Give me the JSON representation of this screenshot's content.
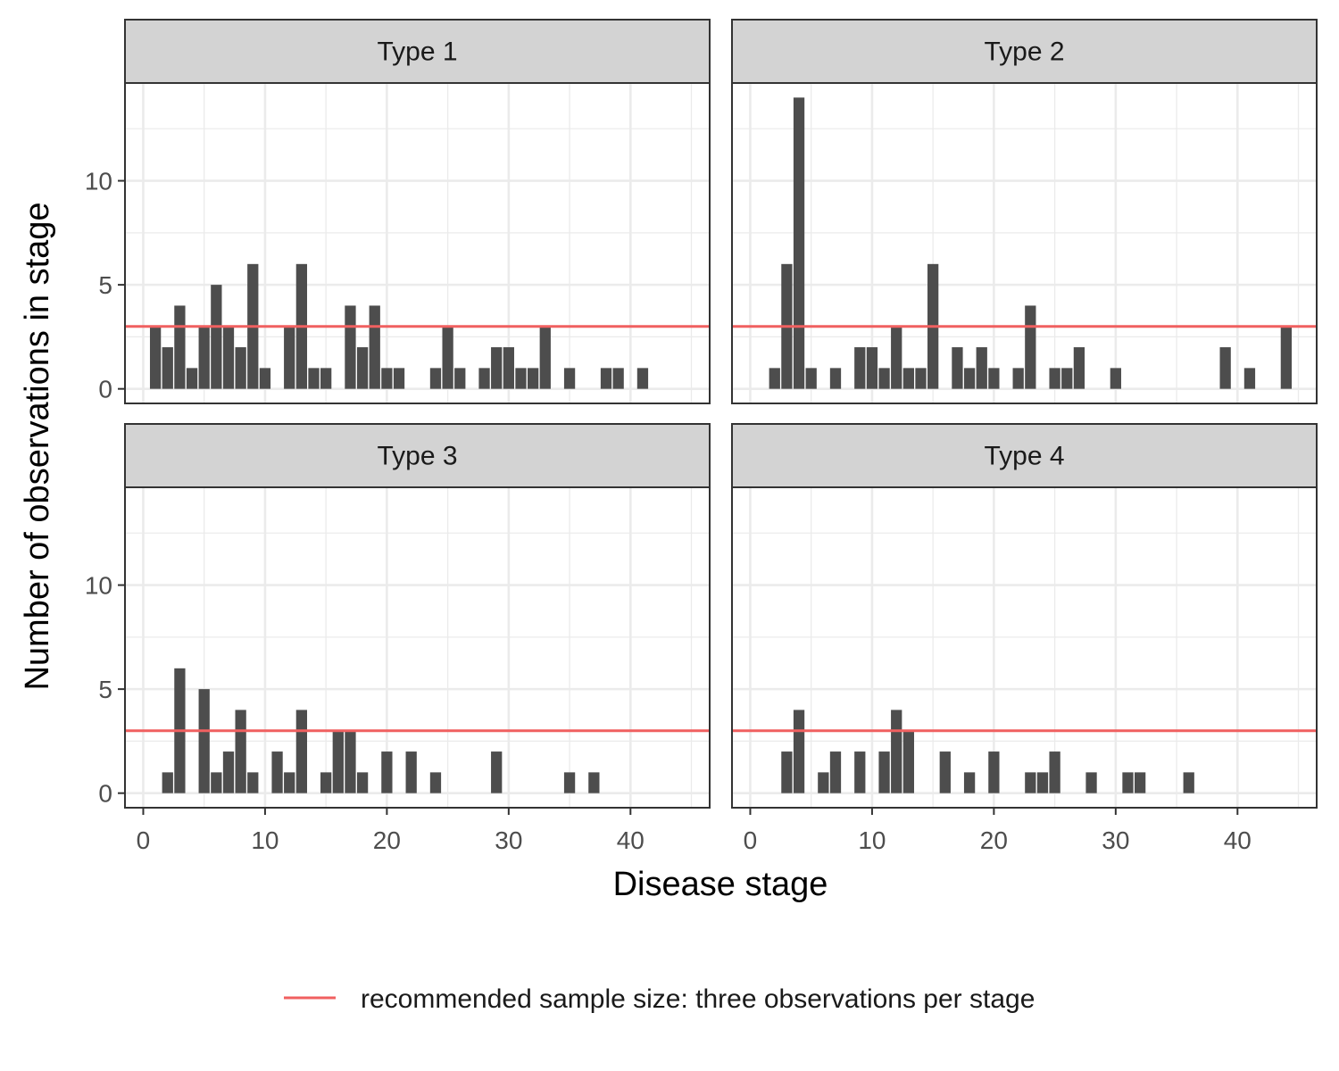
{
  "chart_data": {
    "type": "bar",
    "xlabel": "Disease stage",
    "ylabel": "Number of observations in stage",
    "xlim": [
      -1.5,
      46.5
    ],
    "ylim": [
      -0.7,
      14.7
    ],
    "x_ticks": [
      0,
      10,
      20,
      30,
      40
    ],
    "y_ticks": [
      0,
      5,
      10
    ],
    "grid": true,
    "reference_line": {
      "y": 3,
      "color": "#f06060",
      "label": "recommended sample size: three observations per stage"
    },
    "legend_position": "bottom",
    "bar_color": "#4d4d4d",
    "panels": [
      {
        "name": "Type 1",
        "bars": [
          [
            1,
            3
          ],
          [
            2,
            2
          ],
          [
            3,
            4
          ],
          [
            4,
            1
          ],
          [
            5,
            3
          ],
          [
            6,
            5
          ],
          [
            7,
            3
          ],
          [
            8,
            2
          ],
          [
            9,
            6
          ],
          [
            10,
            1
          ],
          [
            12,
            3
          ],
          [
            13,
            6
          ],
          [
            14,
            1
          ],
          [
            15,
            1
          ],
          [
            17,
            4
          ],
          [
            18,
            2
          ],
          [
            19,
            4
          ],
          [
            20,
            1
          ],
          [
            21,
            1
          ],
          [
            24,
            1
          ],
          [
            25,
            3
          ],
          [
            26,
            1
          ],
          [
            28,
            1
          ],
          [
            29,
            2
          ],
          [
            30,
            2
          ],
          [
            31,
            1
          ],
          [
            32,
            1
          ],
          [
            33,
            3
          ],
          [
            35,
            1
          ],
          [
            38,
            1
          ],
          [
            39,
            1
          ],
          [
            41,
            1
          ]
        ]
      },
      {
        "name": "Type 2",
        "bars": [
          [
            2,
            1
          ],
          [
            3,
            6
          ],
          [
            4,
            14
          ],
          [
            5,
            1
          ],
          [
            7,
            1
          ],
          [
            9,
            2
          ],
          [
            10,
            2
          ],
          [
            11,
            1
          ],
          [
            12,
            3
          ],
          [
            13,
            1
          ],
          [
            14,
            1
          ],
          [
            15,
            6
          ],
          [
            17,
            2
          ],
          [
            18,
            1
          ],
          [
            19,
            2
          ],
          [
            20,
            1
          ],
          [
            22,
            1
          ],
          [
            23,
            4
          ],
          [
            25,
            1
          ],
          [
            26,
            1
          ],
          [
            27,
            2
          ],
          [
            30,
            1
          ],
          [
            39,
            2
          ],
          [
            41,
            1
          ],
          [
            44,
            3
          ]
        ]
      },
      {
        "name": "Type 3",
        "bars": [
          [
            2,
            1
          ],
          [
            3,
            6
          ],
          [
            5,
            5
          ],
          [
            6,
            1
          ],
          [
            7,
            2
          ],
          [
            8,
            4
          ],
          [
            9,
            1
          ],
          [
            11,
            2
          ],
          [
            12,
            1
          ],
          [
            13,
            4
          ],
          [
            15,
            1
          ],
          [
            16,
            3
          ],
          [
            17,
            3
          ],
          [
            18,
            1
          ],
          [
            20,
            2
          ],
          [
            22,
            2
          ],
          [
            24,
            1
          ],
          [
            29,
            2
          ],
          [
            35,
            1
          ],
          [
            37,
            1
          ]
        ]
      },
      {
        "name": "Type 4",
        "bars": [
          [
            3,
            2
          ],
          [
            4,
            4
          ],
          [
            6,
            1
          ],
          [
            7,
            2
          ],
          [
            9,
            2
          ],
          [
            11,
            2
          ],
          [
            12,
            4
          ],
          [
            13,
            3
          ],
          [
            16,
            2
          ],
          [
            18,
            1
          ],
          [
            20,
            2
          ],
          [
            23,
            1
          ],
          [
            24,
            1
          ],
          [
            25,
            2
          ],
          [
            28,
            1
          ],
          [
            31,
            1
          ],
          [
            32,
            1
          ],
          [
            36,
            1
          ]
        ]
      }
    ]
  }
}
